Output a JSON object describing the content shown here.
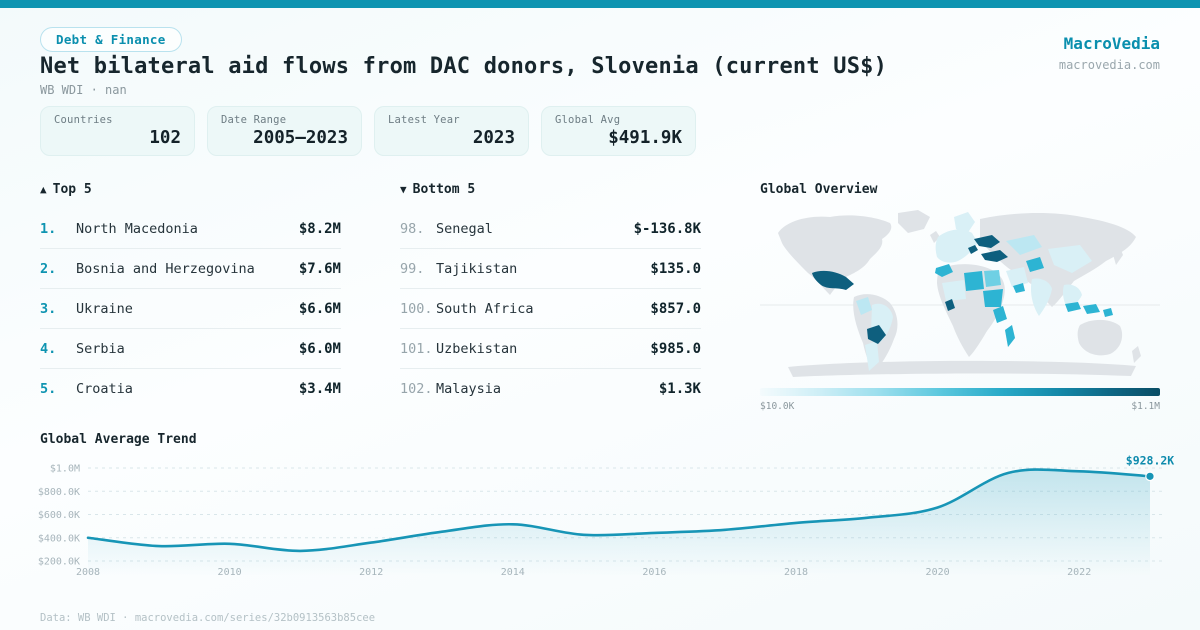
{
  "brand": {
    "name": "MacroVedia",
    "domain": "macrovedia.com"
  },
  "header": {
    "badge": "Debt & Finance",
    "title": "Net bilateral aid flows from DAC donors, Slovenia (current US$)",
    "subtitle": "WB WDI · nan"
  },
  "stats": [
    {
      "label": "Countries",
      "value": "102"
    },
    {
      "label": "Date Range",
      "value": "2005–2023"
    },
    {
      "label": "Latest Year",
      "value": "2023"
    },
    {
      "label": "Global Avg",
      "value": "$491.9K"
    }
  ],
  "top5": {
    "icon": "▲",
    "label": "Top 5",
    "rows": [
      {
        "rank": "1.",
        "name": "North Macedonia",
        "value": "$8.2M"
      },
      {
        "rank": "2.",
        "name": "Bosnia and Herzegovina",
        "value": "$7.6M"
      },
      {
        "rank": "3.",
        "name": "Ukraine",
        "value": "$6.6M"
      },
      {
        "rank": "4.",
        "name": "Serbia",
        "value": "$6.0M"
      },
      {
        "rank": "5.",
        "name": "Croatia",
        "value": "$3.4M"
      }
    ]
  },
  "bottom5": {
    "icon": "▼",
    "label": "Bottom 5",
    "rows": [
      {
        "rank": "98.",
        "name": "Senegal",
        "value": "$-136.8K"
      },
      {
        "rank": "99.",
        "name": "Tajikistan",
        "value": "$135.0"
      },
      {
        "rank": "100.",
        "name": "South Africa",
        "value": "$857.0"
      },
      {
        "rank": "101.",
        "name": "Uzbekistan",
        "value": "$985.0"
      },
      {
        "rank": "102.",
        "name": "Malaysia",
        "value": "$1.3K"
      }
    ]
  },
  "map": {
    "title": "Global Overview",
    "scale_min": "$10.0K",
    "scale_max": "$1.1M"
  },
  "trend": {
    "title": "Global Average Trend"
  },
  "footer": {
    "text": "Data: WB WDI · macrovedia.com/series/32b0913563b85cee"
  },
  "colors": {
    "accent": "#0e94b1",
    "accent_deep": "#0a8fae",
    "line": "#1795b6",
    "map_dark": "#0e5f7e",
    "map_mid": "#2db4d3",
    "map_light": "#bce7f2",
    "map_pale": "#d9f0f6",
    "land": "#dfe3e7",
    "end_label": "#0e8bad"
  },
  "chart_data": [
    {
      "type": "line",
      "title": "Global Average Trend",
      "x": [
        2008,
        2009,
        2010,
        2011,
        2012,
        2013,
        2014,
        2015,
        2016,
        2017,
        2018,
        2019,
        2020,
        2021,
        2022,
        2023
      ],
      "values": [
        400000,
        328000,
        348000,
        287000,
        358000,
        452000,
        516000,
        425000,
        442000,
        468000,
        528000,
        572000,
        660000,
        958000,
        972000,
        928200
      ],
      "ylim": [
        200000,
        1000000
      ],
      "yticks": [
        1000000,
        800000,
        600000,
        400000,
        200000
      ],
      "ytick_labels": [
        "$1.0M",
        "$800.0K",
        "$600.0K",
        "$400.0K",
        "$200.0K"
      ],
      "xticks": [
        2008,
        2010,
        2012,
        2014,
        2016,
        2018,
        2020,
        2022
      ],
      "xlabel": "",
      "ylabel": "",
      "grid": true,
      "legend_position": "none",
      "area": true,
      "end_label": "$928.2K"
    },
    {
      "type": "heatmap",
      "subtype": "world-choropleth",
      "title": "Global Overview",
      "legend": {
        "min_label": "$10.0K",
        "max_label": "$1.1M",
        "position": "bottom"
      },
      "high_value_countries": [
        "Mexico",
        "Bolivia",
        "Ukraine",
        "Turkey",
        "Ghana"
      ],
      "mid_value_countries": [
        "Morocco",
        "Libya",
        "Egypt",
        "Sudan",
        "Kenya",
        "Yemen",
        "Afghanistan",
        "Madagascar",
        "Indonesia"
      ],
      "low_value_regions": [
        "Europe",
        "Kazakhstan",
        "China",
        "India",
        "Brazil",
        "Peru",
        "Argentina",
        "Saudi Arabia",
        "Sahel"
      ],
      "no_data_regions": [
        "Canada",
        "United States",
        "Russia",
        "Australia",
        "Greenland",
        "Antarctica"
      ]
    }
  ]
}
